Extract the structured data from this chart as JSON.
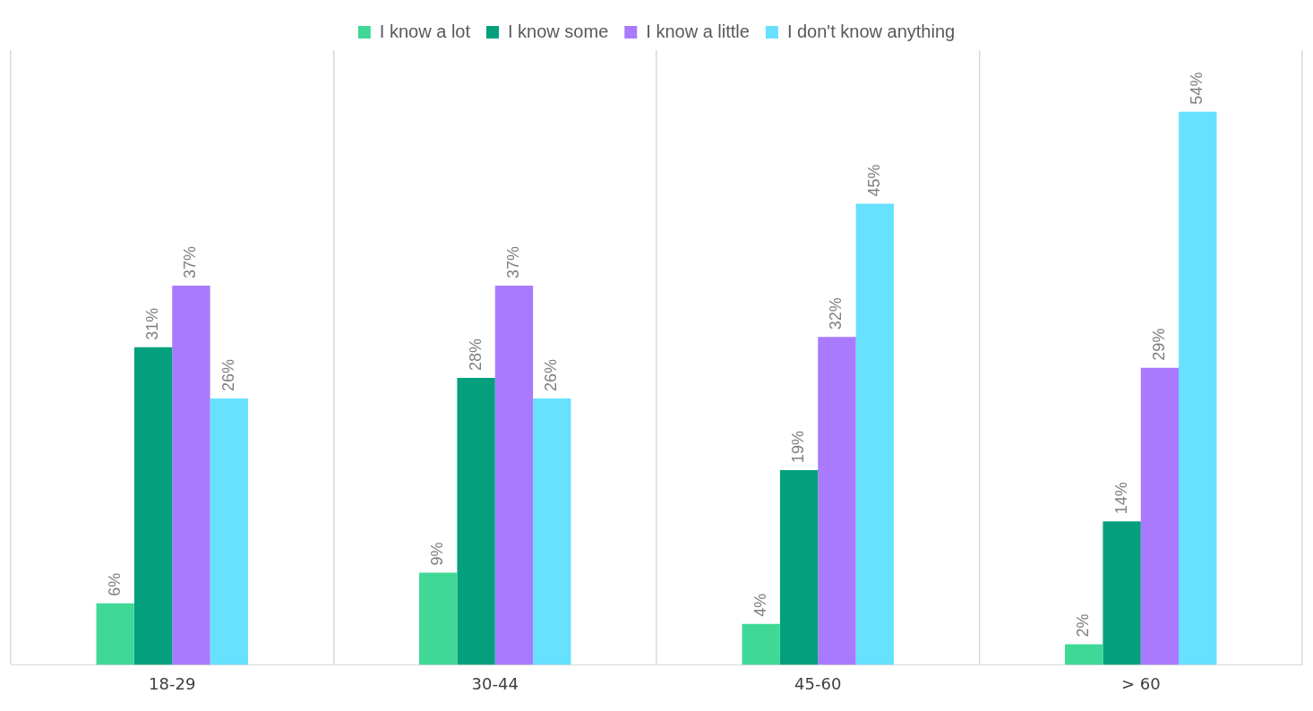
{
  "chart_data": {
    "type": "bar",
    "categories": [
      "18-29",
      "30-44",
      "45-60",
      "> 60"
    ],
    "series": [
      {
        "name": "I know a lot",
        "color": "#3fd897",
        "values": [
          6,
          9,
          4,
          2
        ],
        "value_labels": [
          "6%",
          "9%",
          "4%",
          "2%"
        ]
      },
      {
        "name": "I know some",
        "color": "#04a07e",
        "values": [
          31,
          28,
          19,
          14
        ],
        "value_labels": [
          "31%",
          "28%",
          "19%",
          "14%"
        ]
      },
      {
        "name": "I know a little",
        "color": "#a97afe",
        "values": [
          37,
          37,
          32,
          29
        ],
        "value_labels": [
          "37%",
          "37%",
          "32%",
          "29%"
        ]
      },
      {
        "name": "I don't know anything",
        "color": "#66e1fe",
        "values": [
          26,
          26,
          45,
          54
        ],
        "value_labels": [
          "26%",
          "26%",
          "45%",
          "54%"
        ]
      }
    ],
    "ylim": [
      0,
      60
    ],
    "grid": "x",
    "legend": "top"
  }
}
